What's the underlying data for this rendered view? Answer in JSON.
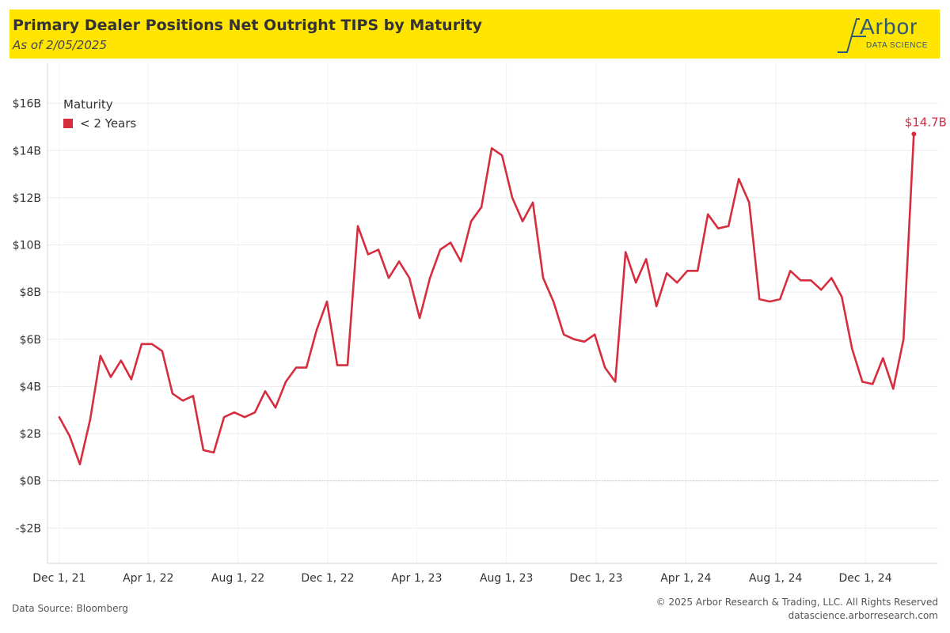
{
  "header": {
    "title": "Primary Dealer Positions Net Outright TIPS by Maturity",
    "subtitle": "As of 2/05/2025",
    "logo_name": "Arbor",
    "logo_sub": "DATA SCIENCE"
  },
  "footer": {
    "source": "Data Source: Bloomberg",
    "copyright": "© 2025 Arbor Research & Trading, LLC. All Rights Reserved",
    "url": "datascience.arborresearch.com"
  },
  "chart_data": {
    "type": "line",
    "title": "Primary Dealer Positions Net Outright TIPS by Maturity",
    "legend_title": "Maturity",
    "legend_position": "top-left",
    "grid": true,
    "x_ticks": [
      "Dec 1, 21",
      "Apr 1, 22",
      "Aug 1, 22",
      "Dec 1, 22",
      "Apr 1, 23",
      "Aug 1, 23",
      "Dec 1, 23",
      "Apr 1, 24",
      "Aug 1, 24",
      "Dec 1, 24"
    ],
    "x_range": [
      "2021-11-15",
      "2025-03-10"
    ],
    "y_ticks": [
      -2,
      0,
      2,
      4,
      6,
      8,
      10,
      12,
      14,
      16
    ],
    "y_tick_labels": [
      "-$2B",
      "$0B",
      "$2B",
      "$4B",
      "$6B",
      "$8B",
      "$10B",
      "$12B",
      "$14B",
      "$16B"
    ],
    "y_unit": "$B",
    "ylim": [
      -3.5,
      17.7
    ],
    "series": [
      {
        "name": "< 2 Years",
        "color": "#d62d3f",
        "end_label": "$14.7B",
        "points": [
          [
            "2021-12-01",
            2.7
          ],
          [
            "2021-12-15",
            1.9
          ],
          [
            "2021-12-29",
            0.7
          ],
          [
            "2022-01-12",
            2.6
          ],
          [
            "2022-01-26",
            5.3
          ],
          [
            "2022-02-09",
            4.4
          ],
          [
            "2022-02-23",
            5.1
          ],
          [
            "2022-03-09",
            4.3
          ],
          [
            "2022-03-23",
            5.8
          ],
          [
            "2022-04-06",
            5.8
          ],
          [
            "2022-04-20",
            5.5
          ],
          [
            "2022-05-04",
            3.7
          ],
          [
            "2022-05-18",
            3.4
          ],
          [
            "2022-06-01",
            3.6
          ],
          [
            "2022-06-15",
            1.3
          ],
          [
            "2022-06-29",
            1.2
          ],
          [
            "2022-07-13",
            2.7
          ],
          [
            "2022-07-27",
            2.9
          ],
          [
            "2022-08-10",
            2.7
          ],
          [
            "2022-08-24",
            2.9
          ],
          [
            "2022-09-07",
            3.8
          ],
          [
            "2022-09-21",
            3.1
          ],
          [
            "2022-10-05",
            4.2
          ],
          [
            "2022-10-19",
            4.8
          ],
          [
            "2022-11-02",
            4.8
          ],
          [
            "2022-11-16",
            6.4
          ],
          [
            "2022-11-30",
            7.6
          ],
          [
            "2022-12-14",
            4.9
          ],
          [
            "2022-12-28",
            4.9
          ],
          [
            "2023-01-11",
            10.8
          ],
          [
            "2023-01-25",
            9.6
          ],
          [
            "2023-02-08",
            9.8
          ],
          [
            "2023-02-22",
            8.6
          ],
          [
            "2023-03-08",
            9.3
          ],
          [
            "2023-03-22",
            8.6
          ],
          [
            "2023-04-05",
            6.9
          ],
          [
            "2023-04-19",
            8.6
          ],
          [
            "2023-05-03",
            9.8
          ],
          [
            "2023-05-17",
            10.1
          ],
          [
            "2023-05-31",
            9.3
          ],
          [
            "2023-06-14",
            11
          ],
          [
            "2023-06-28",
            11.6
          ],
          [
            "2023-07-12",
            14.1
          ],
          [
            "2023-07-26",
            13.8
          ],
          [
            "2023-08-09",
            12
          ],
          [
            "2023-08-23",
            11
          ],
          [
            "2023-09-06",
            11.8
          ],
          [
            "2023-09-20",
            8.6
          ],
          [
            "2023-10-04",
            7.6
          ],
          [
            "2023-10-18",
            6.2
          ],
          [
            "2023-11-01",
            6.0
          ],
          [
            "2023-11-15",
            5.9
          ],
          [
            "2023-11-29",
            6.2
          ],
          [
            "2023-12-13",
            4.8
          ],
          [
            "2023-12-27",
            4.2
          ],
          [
            "2024-01-10",
            9.7
          ],
          [
            "2024-01-24",
            8.4
          ],
          [
            "2024-02-07",
            9.4
          ],
          [
            "2024-02-21",
            7.4
          ],
          [
            "2024-03-06",
            8.8
          ],
          [
            "2024-03-20",
            8.4
          ],
          [
            "2024-04-03",
            8.9
          ],
          [
            "2024-04-17",
            8.9
          ],
          [
            "2024-05-01",
            11.3
          ],
          [
            "2024-05-15",
            10.7
          ],
          [
            "2024-05-29",
            10.8
          ],
          [
            "2024-06-12",
            12.8
          ],
          [
            "2024-06-26",
            11.8
          ],
          [
            "2024-07-10",
            7.7
          ],
          [
            "2024-07-24",
            7.6
          ],
          [
            "2024-08-07",
            7.7
          ],
          [
            "2024-08-21",
            8.9
          ],
          [
            "2024-09-04",
            8.5
          ],
          [
            "2024-09-18",
            8.5
          ],
          [
            "2024-10-02",
            8.1
          ],
          [
            "2024-10-16",
            8.6
          ],
          [
            "2024-10-30",
            7.8
          ],
          [
            "2024-11-13",
            5.6
          ],
          [
            "2024-11-27",
            4.2
          ],
          [
            "2024-12-11",
            4.1
          ],
          [
            "2024-12-25",
            5.2
          ],
          [
            "2025-01-08",
            3.9
          ],
          [
            "2025-01-22",
            6.0
          ],
          [
            "2025-02-05",
            14.7
          ]
        ]
      }
    ]
  }
}
